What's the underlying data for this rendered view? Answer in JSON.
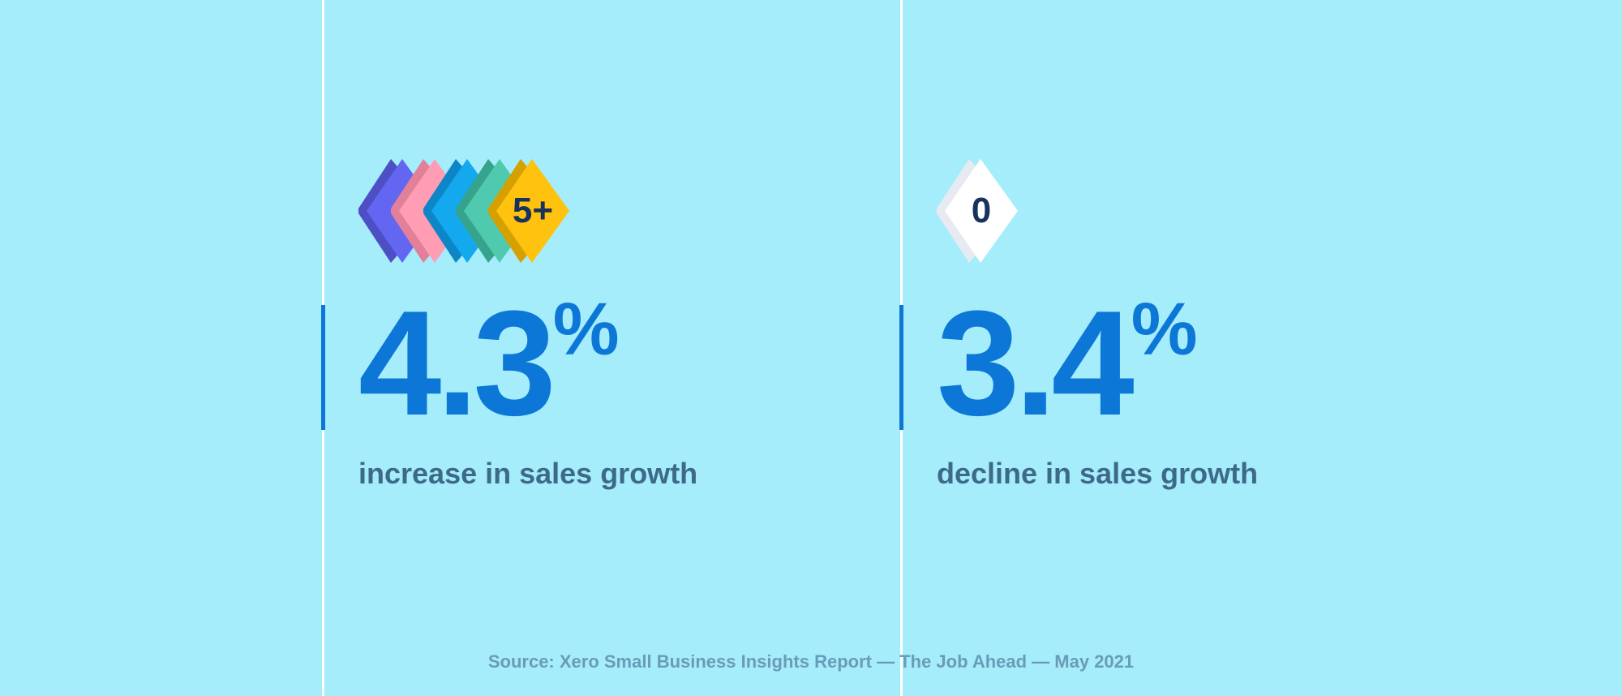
{
  "colors": {
    "background": "#a6edfc",
    "accent": "#0c77d6",
    "caption": "#3e6a8a",
    "source": "#6a9bb8"
  },
  "stats": [
    {
      "badges": [
        {
          "color": "#6366f1",
          "shade": "#4e4fc4",
          "label": ""
        },
        {
          "color": "#ff9db5",
          "shade": "#e28099",
          "label": ""
        },
        {
          "color": "#14a8ee",
          "shade": "#0c86c6",
          "label": ""
        },
        {
          "color": "#4fcaae",
          "shade": "#36a48c",
          "label": ""
        },
        {
          "color": "#ffc20e",
          "shade": "#d6a000",
          "label": "5+"
        }
      ],
      "value": "4.3",
      "unit": "%",
      "caption": "increase in sales growth"
    },
    {
      "badges": [
        {
          "color": "#ffffff",
          "shade": "#e8eaf2",
          "label": "0"
        }
      ],
      "value": "3.4",
      "unit": "%",
      "caption": "decline in sales growth"
    }
  ],
  "source": "Source: Xero Small Business Insights Report — The Job Ahead — May 2021"
}
